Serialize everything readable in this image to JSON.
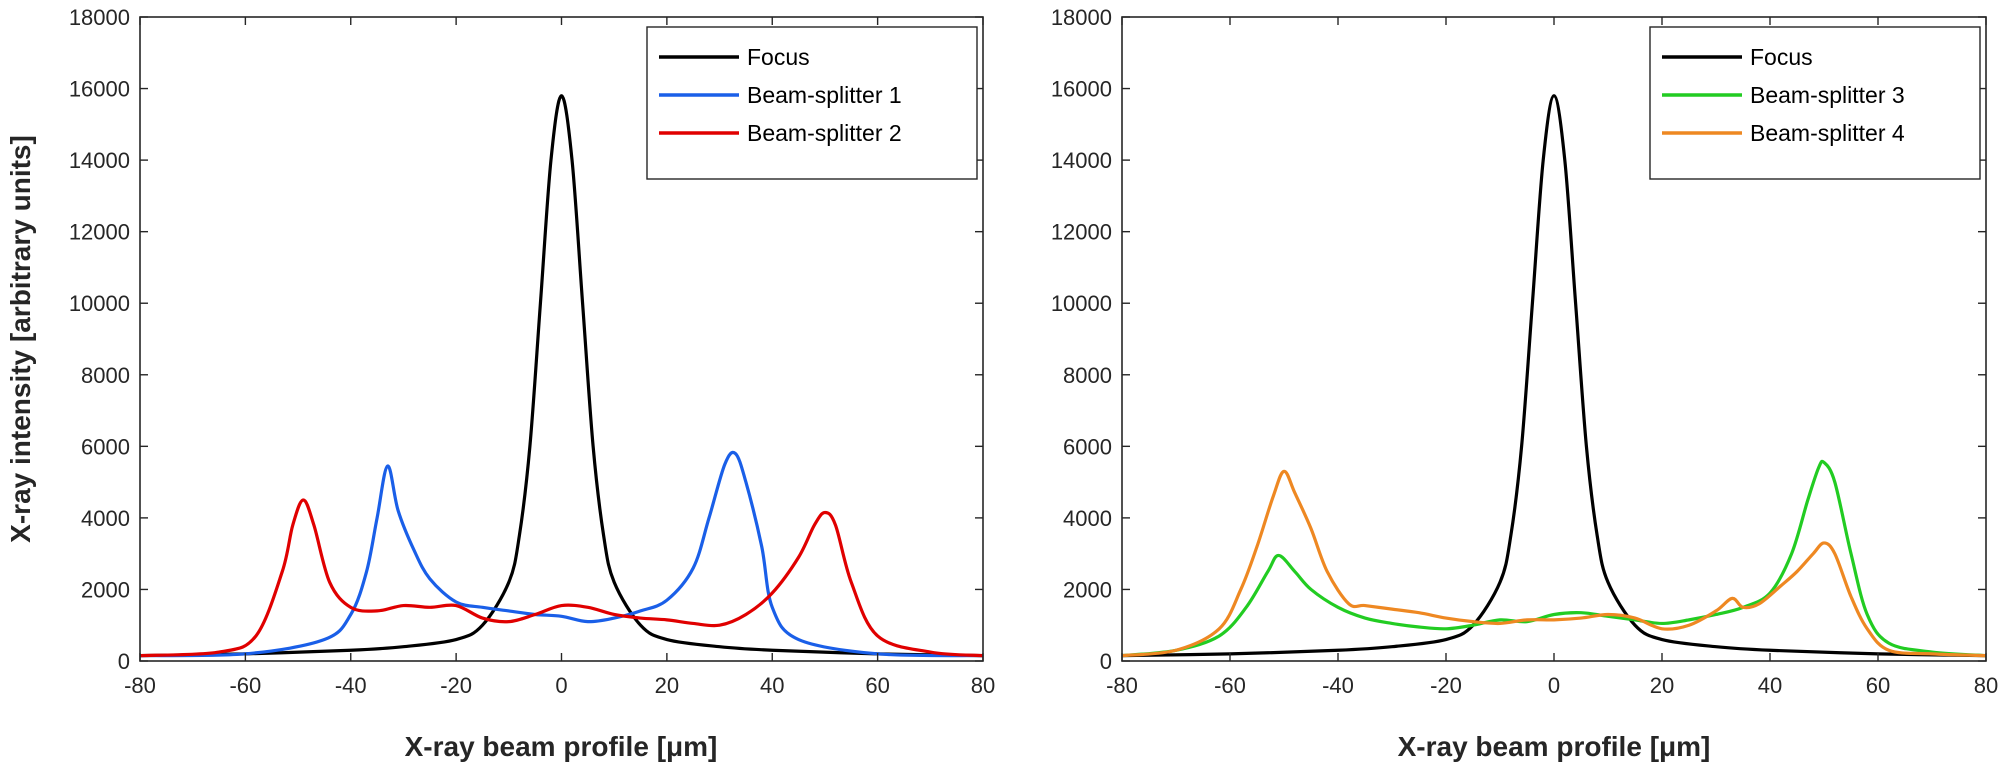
{
  "chart_data": [
    {
      "type": "line",
      "title": "",
      "xlabel": "X-ray beam profile [μm]",
      "ylabel": "X-ray intensity [arbitrary units]",
      "xlim": [
        -80,
        80
      ],
      "ylim": [
        0,
        18000
      ],
      "xticks": [
        -80,
        -60,
        -40,
        -20,
        0,
        20,
        40,
        60,
        80
      ],
      "yticks": [
        0,
        2000,
        4000,
        6000,
        8000,
        10000,
        12000,
        14000,
        16000,
        18000
      ],
      "legend_position": "top-right",
      "series": [
        {
          "name": "Focus",
          "color": "#000000",
          "x": [
            -80,
            -60,
            -40,
            -30,
            -20,
            -15,
            -10,
            -8,
            -6,
            -4,
            -2,
            0,
            2,
            4,
            6,
            8,
            10,
            15,
            20,
            30,
            40,
            60,
            80
          ],
          "y": [
            150,
            200,
            300,
            400,
            600,
            1000,
            2200,
            3500,
            6000,
            10000,
            14000,
            15800,
            14000,
            10000,
            6000,
            3500,
            2200,
            1000,
            600,
            400,
            300,
            200,
            150
          ]
        },
        {
          "name": "Beam-splitter 1",
          "color": "#1a5fe8",
          "x": [
            -80,
            -60,
            -45,
            -40,
            -37,
            -35,
            -33,
            -31,
            -28,
            -25,
            -20,
            -15,
            -10,
            -5,
            0,
            5,
            10,
            15,
            20,
            25,
            28,
            31,
            33,
            35,
            38,
            40,
            45,
            60,
            80
          ],
          "y": [
            150,
            200,
            600,
            1300,
            2500,
            4000,
            5450,
            4200,
            3100,
            2300,
            1650,
            1500,
            1400,
            1300,
            1250,
            1100,
            1200,
            1400,
            1700,
            2600,
            4000,
            5500,
            5800,
            5000,
            3200,
            1500,
            600,
            200,
            150
          ]
        },
        {
          "name": "Beam-splitter 2",
          "color": "#e00000",
          "x": [
            -80,
            -65,
            -58,
            -53,
            -51,
            -49,
            -47,
            -44,
            -40,
            -35,
            -30,
            -25,
            -20,
            -15,
            -10,
            -5,
            0,
            5,
            10,
            15,
            20,
            25,
            30,
            35,
            40,
            45,
            48,
            50,
            52,
            55,
            60,
            70,
            80
          ],
          "y": [
            150,
            250,
            700,
            2500,
            3800,
            4500,
            3800,
            2200,
            1500,
            1400,
            1550,
            1500,
            1550,
            1200,
            1100,
            1300,
            1550,
            1500,
            1300,
            1200,
            1150,
            1050,
            1000,
            1300,
            1900,
            2900,
            3800,
            4150,
            3800,
            2200,
            700,
            250,
            150
          ]
        }
      ]
    },
    {
      "type": "line",
      "title": "",
      "xlabel": "X-ray beam profile [μm]",
      "ylabel": "",
      "xlim": [
        -80,
        80
      ],
      "ylim": [
        0,
        18000
      ],
      "xticks": [
        -80,
        -60,
        -40,
        -20,
        0,
        20,
        40,
        60,
        80
      ],
      "yticks": [
        0,
        2000,
        4000,
        6000,
        8000,
        10000,
        12000,
        14000,
        16000,
        18000
      ],
      "legend_position": "top-right",
      "series": [
        {
          "name": "Focus",
          "color": "#000000",
          "x": [
            -80,
            -60,
            -40,
            -30,
            -20,
            -15,
            -10,
            -8,
            -6,
            -4,
            -2,
            0,
            2,
            4,
            6,
            8,
            10,
            15,
            20,
            30,
            40,
            60,
            80
          ],
          "y": [
            150,
            200,
            300,
            400,
            600,
            1000,
            2200,
            3500,
            6000,
            10000,
            14000,
            15800,
            14000,
            10000,
            6000,
            3500,
            2200,
            1000,
            600,
            400,
            300,
            200,
            150
          ]
        },
        {
          "name": "Beam-splitter 3",
          "color": "#22cc22",
          "x": [
            -80,
            -70,
            -62,
            -57,
            -53,
            -51,
            -48,
            -45,
            -40,
            -35,
            -30,
            -25,
            -20,
            -15,
            -10,
            -5,
            0,
            5,
            10,
            15,
            20,
            25,
            30,
            35,
            40,
            44,
            47,
            49,
            50,
            52,
            55,
            58,
            62,
            70,
            80
          ],
          "y": [
            150,
            300,
            700,
            1500,
            2500,
            2950,
            2500,
            2000,
            1500,
            1200,
            1050,
            950,
            900,
            1000,
            1150,
            1100,
            1300,
            1350,
            1250,
            1150,
            1050,
            1150,
            1300,
            1500,
            1900,
            3000,
            4500,
            5400,
            5550,
            5000,
            3000,
            1300,
            500,
            250,
            150
          ]
        },
        {
          "name": "Beam-splitter 4",
          "color": "#ee8822",
          "x": [
            -80,
            -70,
            -62,
            -58,
            -55,
            -52,
            -50,
            -48,
            -45,
            -42,
            -38,
            -35,
            -30,
            -25,
            -20,
            -15,
            -10,
            -5,
            0,
            5,
            10,
            15,
            20,
            25,
            30,
            33,
            35,
            38,
            42,
            45,
            48,
            50,
            52,
            55,
            58,
            62,
            70,
            80
          ],
          "y": [
            150,
            300,
            900,
            2000,
            3200,
            4600,
            5300,
            4700,
            3700,
            2500,
            1600,
            1550,
            1450,
            1350,
            1200,
            1100,
            1050,
            1150,
            1150,
            1200,
            1300,
            1200,
            900,
            1000,
            1400,
            1750,
            1500,
            1600,
            2100,
            2500,
            3000,
            3300,
            3000,
            1800,
            900,
            300,
            200,
            150
          ]
        }
      ]
    }
  ]
}
